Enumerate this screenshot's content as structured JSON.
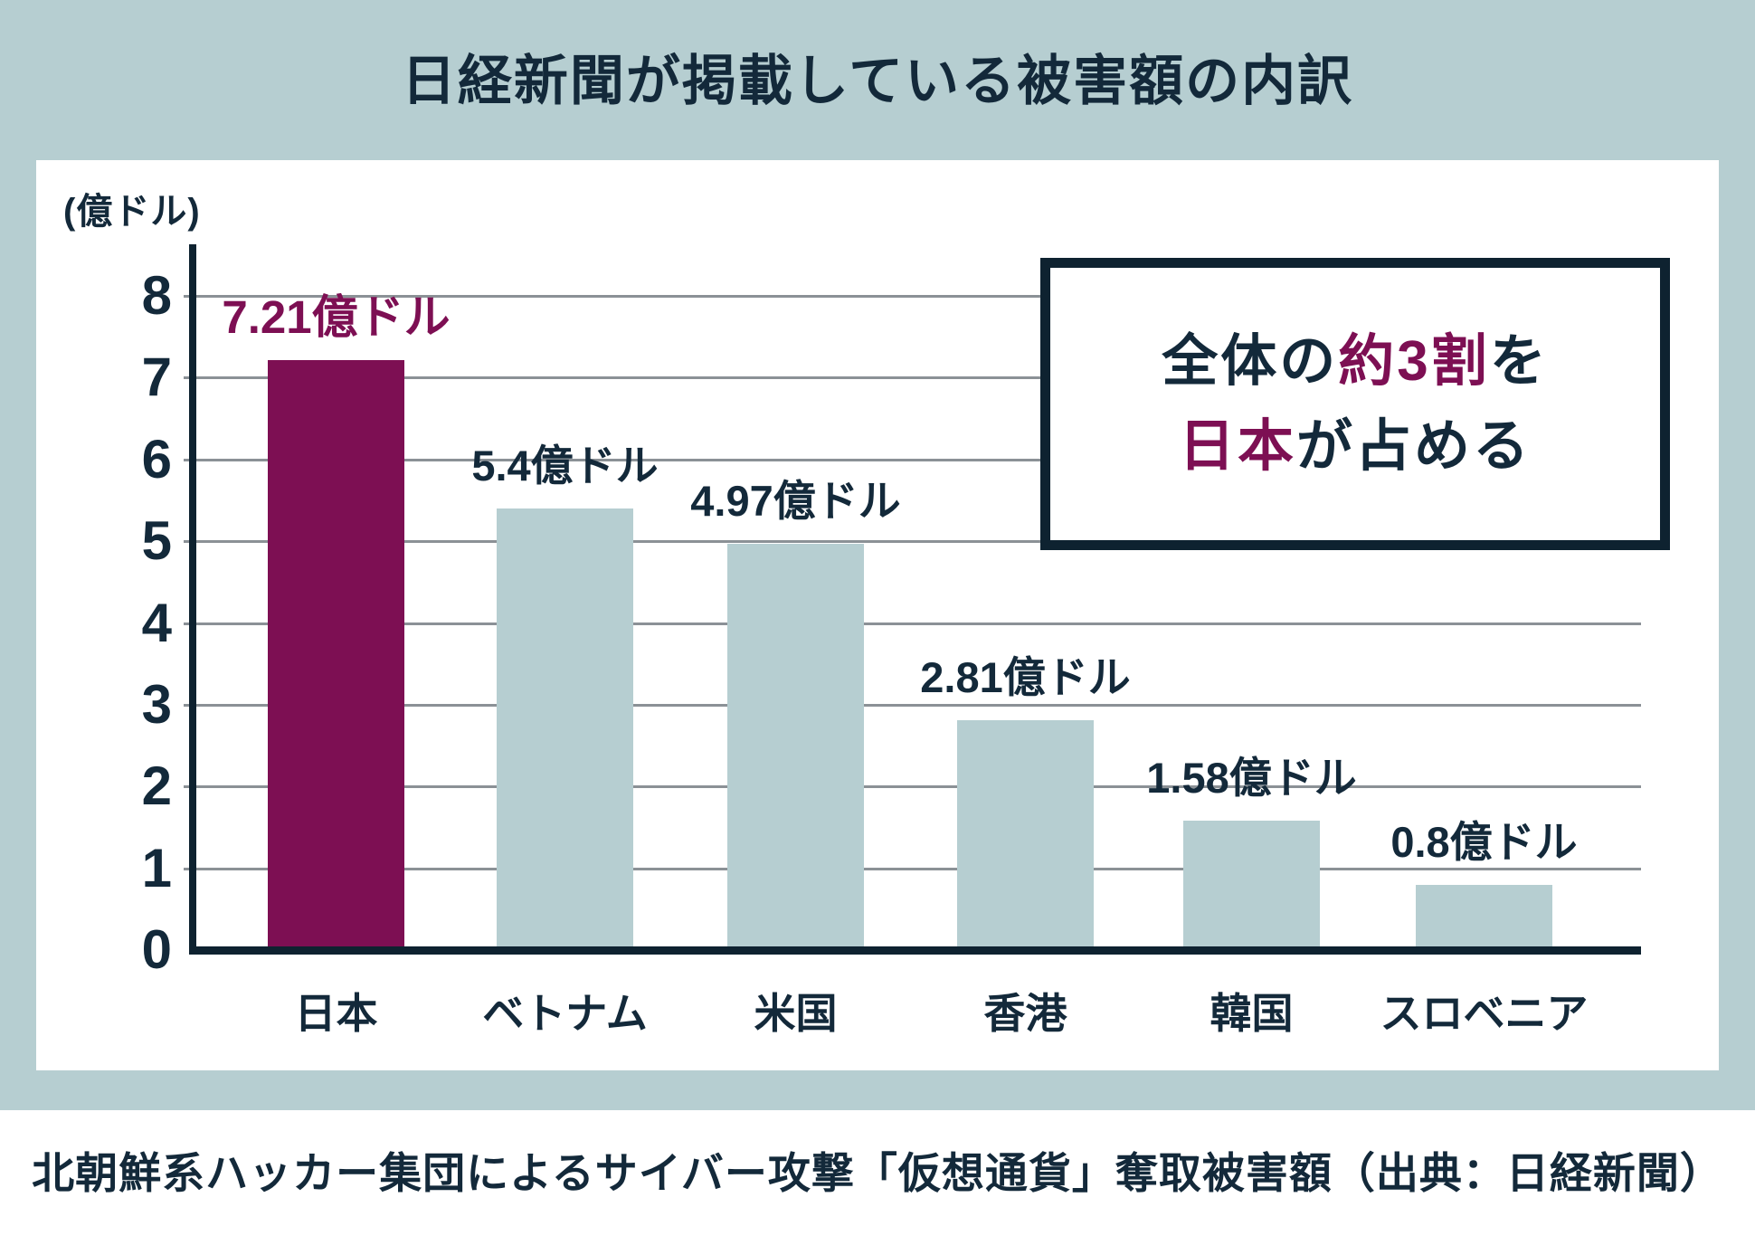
{
  "title": "日経新聞が掲載している被害額の内訳",
  "caption": "北朝鮮系ハッカー集団によるサイバー攻撃「仮想通貨」奪取被害額（出典：日経新聞）",
  "colors": {
    "background_teal": "#b6ced1",
    "panel_white": "#ffffff",
    "bar_teal": "#b6ced1",
    "highlight_maroon": "#7d0f53",
    "text_navy": "#13293a",
    "axis_line_navy": "#0e2230",
    "gridline_gray": "#8b9196"
  },
  "callout": {
    "line1_pre": "全体の",
    "line1_em": "約3割",
    "line1_post": "を",
    "line2_em": "日本",
    "line2_post": "が占める"
  },
  "chart_data": {
    "type": "bar",
    "unit_label": "(億ドル)",
    "categories": [
      "日本",
      "ベトナム",
      "米国",
      "香港",
      "韓国",
      "スロベニア"
    ],
    "values": [
      7.21,
      5.4,
      4.97,
      2.81,
      1.58,
      0.8
    ],
    "value_labels": [
      "7.21億ドル",
      "5.4億ドル",
      "4.97億ドル",
      "2.81億ドル",
      "1.58億ドル",
      "0.8億ドル"
    ],
    "highlight_index": 0,
    "highlight_color": "#7d0f53",
    "bar_color": "#b6ced1",
    "ylim": [
      0,
      8
    ],
    "yticks": [
      0,
      1,
      2,
      3,
      4,
      5,
      6,
      7,
      8
    ],
    "grid": true,
    "legend": "none"
  }
}
